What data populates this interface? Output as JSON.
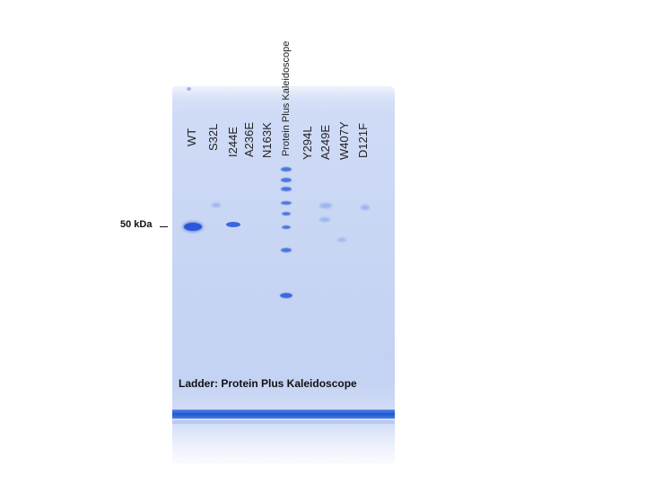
{
  "lanes": [
    {
      "label": "WT"
    },
    {
      "label": "S32L"
    },
    {
      "label": "I244E"
    },
    {
      "label": "A236E"
    },
    {
      "label": "N163K"
    },
    {
      "label": "Protein Plus Kaleidoscope"
    },
    {
      "label": "Y294L"
    },
    {
      "label": "A249E"
    },
    {
      "label": "W407Y"
    },
    {
      "label": "D121F"
    }
  ],
  "marker": {
    "label": "50 kDa"
  },
  "caption": "Ladder: Protein Plus Kaleidoscope",
  "colors": {
    "gel": "#c8d6f4",
    "band": "#2a57d9",
    "dye_front": "#1f57d4"
  }
}
